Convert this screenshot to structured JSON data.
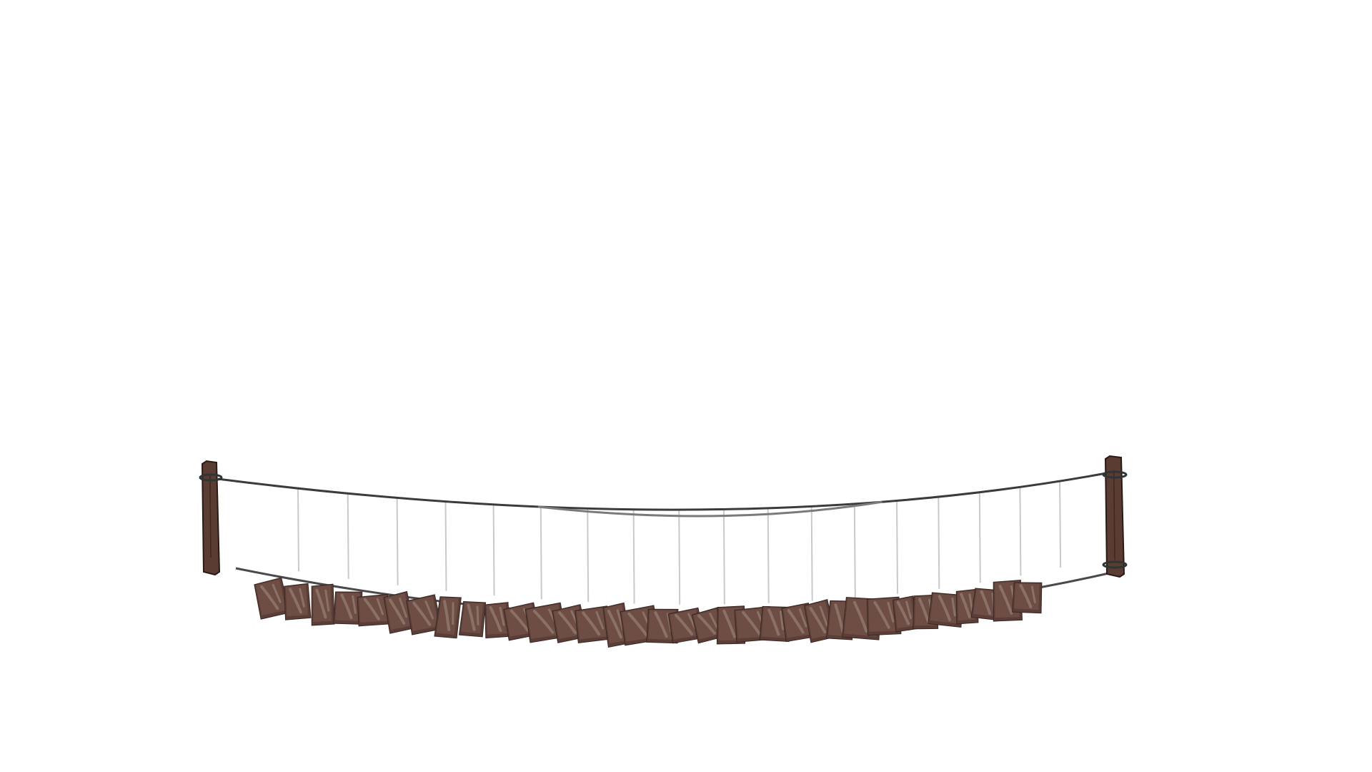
{
  "scene": {
    "background_color": "#ffffff",
    "subject": "rope-bridge",
    "plank_count": 34,
    "hanger_count": 18,
    "colors": {
      "post": "#5a3c33",
      "post_outline": "#2a1a16",
      "plank_dark": "#5b3e37",
      "plank_mid": "#6e4d44",
      "plank_highlight": "#8a7166",
      "rope_top": "#3b3b3b",
      "rope_top_middle": "#7a7a7a",
      "rope_bottom": "#4a4a4a",
      "hanger": "#c9c9c9",
      "lashing": "#2e3535"
    }
  }
}
